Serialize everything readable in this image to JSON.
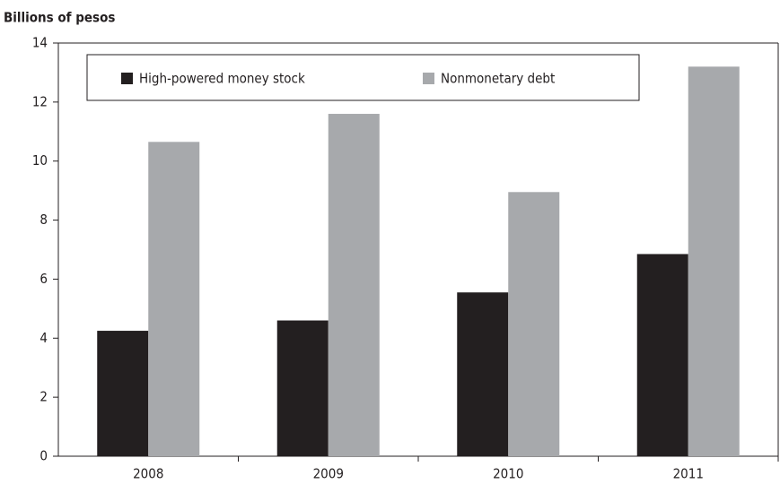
{
  "chart_data": {
    "type": "bar",
    "y_axis_label": "Billions of pesos",
    "categories": [
      "2008",
      "2009",
      "2010",
      "2011"
    ],
    "series": [
      {
        "name": "High-powered money stock",
        "color": "#231f20",
        "values": [
          4.25,
          4.6,
          5.55,
          6.85
        ]
      },
      {
        "name": "Nonmonetary debt",
        "color": "#a7a9ac",
        "values": [
          10.65,
          11.6,
          8.95,
          13.2
        ]
      }
    ],
    "ylim": [
      0,
      14
    ],
    "yticks": [
      0,
      2,
      4,
      6,
      8,
      10,
      12,
      14
    ],
    "grid": false,
    "legend": "top"
  }
}
